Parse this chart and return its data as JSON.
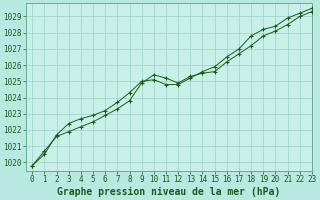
{
  "title": "Graphe pression niveau de la mer (hPa)",
  "bg_color": "#b8e8e0",
  "plot_bg_color": "#c8f0e8",
  "line_color": "#1a5c1a",
  "marker_color": "#1a5c1a",
  "xlim": [
    -0.5,
    23
  ],
  "ylim": [
    1019.5,
    1029.8
  ],
  "yticks": [
    1020,
    1021,
    1022,
    1023,
    1024,
    1025,
    1026,
    1027,
    1028,
    1029
  ],
  "xticks": [
    0,
    1,
    2,
    3,
    4,
    5,
    6,
    7,
    8,
    9,
    10,
    11,
    12,
    13,
    14,
    15,
    16,
    17,
    18,
    19,
    20,
    21,
    22,
    23
  ],
  "series1_x": [
    0,
    1,
    2,
    3,
    4,
    5,
    6,
    7,
    8,
    9,
    10,
    11,
    12,
    13,
    14,
    15,
    16,
    17,
    18,
    19,
    20,
    21,
    22,
    23
  ],
  "series1_y": [
    1019.8,
    1020.7,
    1021.6,
    1021.9,
    1022.2,
    1022.5,
    1022.9,
    1023.3,
    1023.8,
    1024.9,
    1025.4,
    1025.2,
    1024.9,
    1025.3,
    1025.5,
    1025.6,
    1026.2,
    1026.7,
    1027.2,
    1027.8,
    1028.1,
    1028.5,
    1029.0,
    1029.3
  ],
  "series2_x": [
    0,
    1,
    2,
    3,
    4,
    5,
    6,
    7,
    8,
    9,
    10,
    11,
    12,
    13,
    14,
    15,
    16,
    17,
    18,
    19,
    20,
    21,
    22,
    23
  ],
  "series2_y": [
    1019.8,
    1020.5,
    1021.7,
    1022.4,
    1022.7,
    1022.9,
    1023.2,
    1023.7,
    1024.3,
    1025.0,
    1025.1,
    1024.8,
    1024.8,
    1025.2,
    1025.6,
    1025.9,
    1026.5,
    1027.0,
    1027.8,
    1028.2,
    1028.4,
    1028.9,
    1029.2,
    1029.5
  ],
  "title_fontsize": 7.0,
  "tick_fontsize": 5.5,
  "grid_color": "#9ecfcc",
  "spine_color": "#6aaa99"
}
